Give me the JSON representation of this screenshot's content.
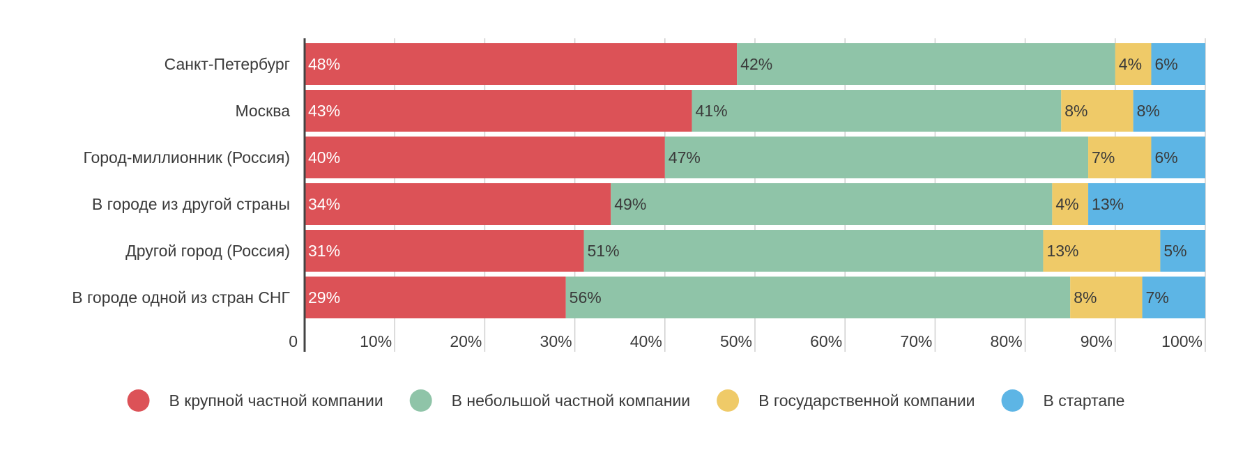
{
  "chart_data": {
    "type": "bar",
    "orientation": "horizontal",
    "stacked": true,
    "categories": [
      "Санкт-Петербург",
      "Москва",
      "Город-миллионник (Россия)",
      "В городе из другой страны",
      "Другой город (Россия)",
      "В городе одной из стран СНГ"
    ],
    "series": [
      {
        "name": "В крупной частной компании",
        "color": "#dc5257",
        "label_color": "#ffffff",
        "values": [
          48,
          43,
          40,
          34,
          31,
          29
        ]
      },
      {
        "name": "В небольшой частной компании",
        "color": "#8fc4a8",
        "label_color": "#3a3a3a",
        "values": [
          42,
          41,
          47,
          49,
          51,
          56
        ]
      },
      {
        "name": "В государственной компании",
        "color": "#efca68",
        "label_color": "#3a3a3a",
        "values": [
          4,
          8,
          7,
          4,
          13,
          8
        ]
      },
      {
        "name": "В стартапе",
        "color": "#5db5e5",
        "label_color": "#3a3a3a",
        "values": [
          6,
          8,
          6,
          13,
          5,
          7
        ]
      }
    ],
    "xlim": [
      0,
      100
    ],
    "x_ticks": [
      0,
      10,
      20,
      30,
      40,
      50,
      60,
      70,
      80,
      90,
      100
    ],
    "x_tick_labels": [
      "0",
      "10%",
      "20%",
      "30%",
      "40%",
      "50%",
      "60%",
      "70%",
      "80%",
      "90%",
      "100%"
    ],
    "grid": true,
    "legend_position": "bottom",
    "title": "",
    "xlabel": "",
    "ylabel": ""
  }
}
